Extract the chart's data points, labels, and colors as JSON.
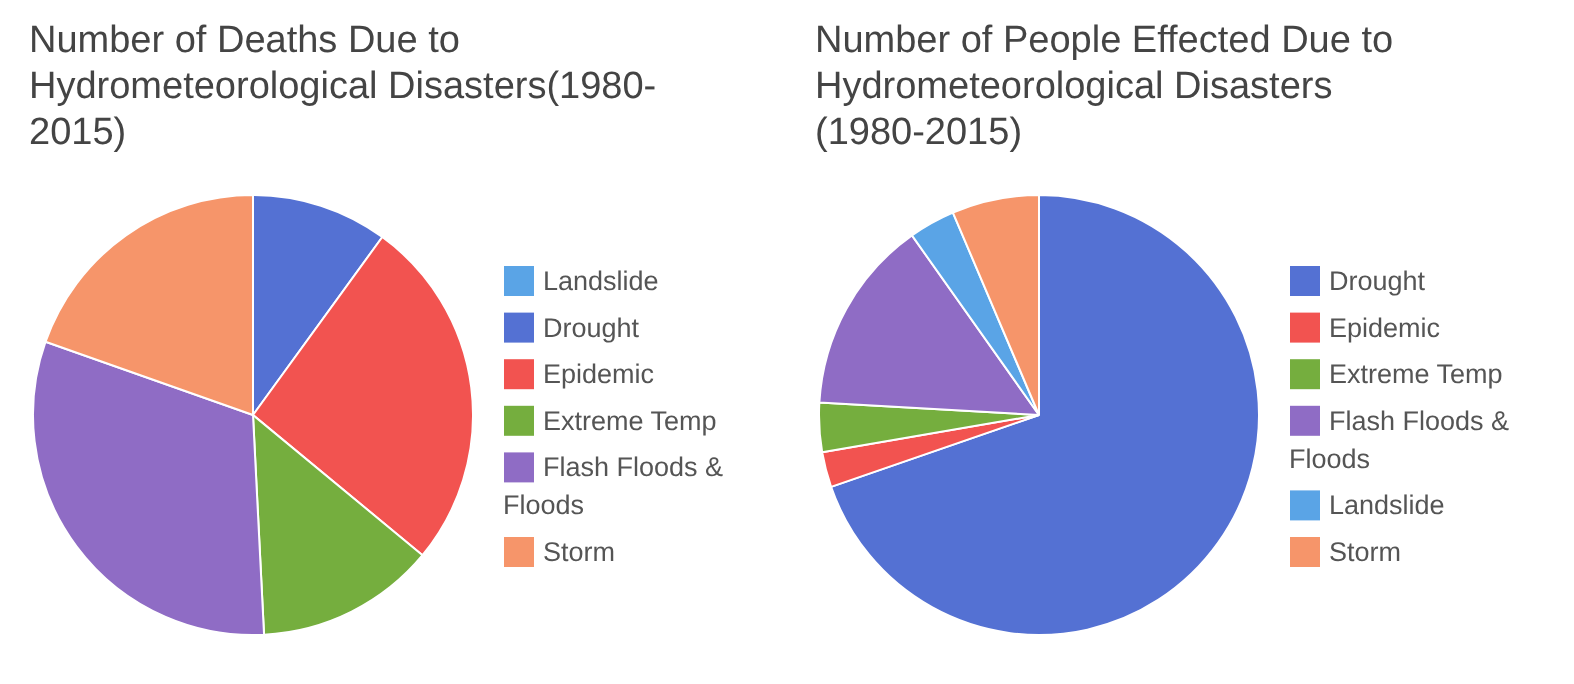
{
  "chart_data": [
    {
      "type": "pie",
      "title": "Number of Deaths Due to Hydrometeorological Disasters(1980-2015)",
      "categories": [
        "Landslide",
        "Drought",
        "Epidemic",
        "Extreme Temp",
        "Flash Floods & Floods",
        "Storm"
      ],
      "values": [
        null,
        10,
        26,
        13.2,
        31.2,
        19.6
      ],
      "colors": [
        "#5aa4e6",
        "#5471d3",
        "#f25350",
        "#75ae3e",
        "#8f6cc5",
        "#f6956a"
      ],
      "legend": "right"
    },
    {
      "type": "pie",
      "title": "Number of People Effected Due to Hydrometeorological Disasters (1980-2015)",
      "categories": [
        "Drought",
        "Epidemic",
        "Extreme Temp",
        "Flash Floods & Floods",
        "Landslide",
        "Storm"
      ],
      "values": [
        69.7,
        2.6,
        3.6,
        14.3,
        3.4,
        6.4
      ],
      "colors": [
        "#5471d3",
        "#f25350",
        "#75ae3e",
        "#8f6cc5",
        "#5aa4e6",
        "#f6956a"
      ],
      "legend": "right"
    }
  ]
}
